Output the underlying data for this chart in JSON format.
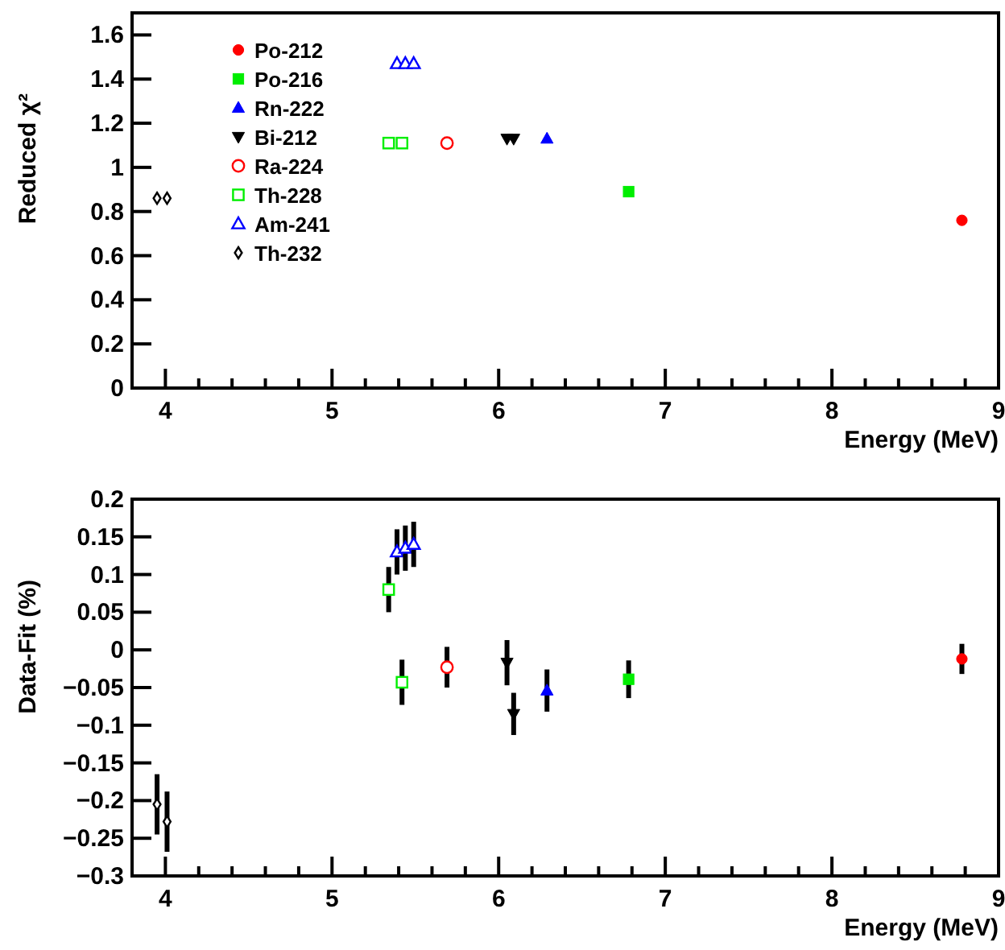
{
  "chart_data": [
    {
      "type": "scatter",
      "ylabel": "Reduced χ²",
      "xlabel": "Energy (MeV)",
      "xlim": [
        3.8,
        9
      ],
      "ylim": [
        0,
        1.7
      ],
      "legend": "top left",
      "xticks": [
        4,
        {
          "value": 4.2,
          "label": null
        },
        {
          "value": 4.4,
          "label": null
        },
        {
          "value": 4.6,
          "label": null
        },
        {
          "value": 4.8,
          "label": null
        },
        5,
        {
          "value": 5.2,
          "label": null
        },
        {
          "value": 5.4,
          "label": null
        },
        {
          "value": 5.6,
          "label": null
        },
        {
          "value": 5.8,
          "label": null
        },
        6,
        {
          "value": 6.2,
          "label": null
        },
        {
          "value": 6.4,
          "label": null
        },
        {
          "value": 6.6,
          "label": null
        },
        {
          "value": 6.8,
          "label": null
        },
        7,
        {
          "value": 7.2,
          "label": null
        },
        {
          "value": 7.4,
          "label": null
        },
        {
          "value": 7.6,
          "label": null
        },
        {
          "value": 7.8,
          "label": null
        },
        8,
        {
          "value": 8.2,
          "label": null
        },
        {
          "value": 8.4,
          "label": null
        },
        {
          "value": 8.6,
          "label": null
        },
        {
          "value": 8.8,
          "label": null
        },
        9
      ],
      "yticks": [
        0,
        0.2,
        0.4,
        0.6,
        0.8,
        1,
        1.2,
        1.4,
        1.6
      ],
      "series": [
        {
          "name": "Po-212",
          "color": "#ff0000",
          "marker": "circle",
          "x": [
            8.78
          ],
          "values": [
            0.76
          ]
        },
        {
          "name": "Po-216",
          "color": "#00ee00",
          "marker": "square",
          "x": [
            6.78
          ],
          "values": [
            0.89
          ]
        },
        {
          "name": "Rn-222",
          "color": "#0000ff",
          "marker": "triangle",
          "x": [
            6.29
          ],
          "values": [
            1.13
          ]
        },
        {
          "name": "Bi-212",
          "color": "#000000",
          "marker": "triangle-down",
          "x": [
            6.05,
            6.09
          ],
          "values": [
            1.13,
            1.13
          ]
        },
        {
          "name": "Ra-224",
          "color": "#ff0000",
          "marker": "circle-open",
          "x": [
            5.69
          ],
          "values": [
            1.11
          ]
        },
        {
          "name": "Th-228",
          "color": "#00ee00",
          "marker": "square-open",
          "x": [
            5.34,
            5.42
          ],
          "values": [
            1.11,
            1.11
          ]
        },
        {
          "name": "Am-241",
          "color": "#0000ff",
          "marker": "triangle-open",
          "x": [
            5.39,
            5.44,
            5.49
          ],
          "values": [
            1.47,
            1.47,
            1.47
          ]
        },
        {
          "name": "Th-232",
          "color": "#000000",
          "marker": "diamond-open",
          "x": [
            3.95,
            4.01
          ],
          "values": [
            0.86,
            0.86
          ]
        }
      ]
    },
    {
      "type": "scatter",
      "ylabel": "Data-Fit (%)",
      "xlabel": "Energy (MeV)",
      "xlim": [
        3.8,
        9
      ],
      "ylim": [
        -0.3,
        0.2
      ],
      "xticks": [
        4,
        {
          "value": 4.2,
          "label": null
        },
        {
          "value": 4.4,
          "label": null
        },
        {
          "value": 4.6,
          "label": null
        },
        {
          "value": 4.8,
          "label": null
        },
        5,
        {
          "value": 5.2,
          "label": null
        },
        {
          "value": 5.4,
          "label": null
        },
        {
          "value": 5.6,
          "label": null
        },
        {
          "value": 5.8,
          "label": null
        },
        6,
        {
          "value": 6.2,
          "label": null
        },
        {
          "value": 6.4,
          "label": null
        },
        {
          "value": 6.6,
          "label": null
        },
        {
          "value": 6.8,
          "label": null
        },
        7,
        {
          "value": 7.2,
          "label": null
        },
        {
          "value": 7.4,
          "label": null
        },
        {
          "value": 7.6,
          "label": null
        },
        {
          "value": 7.8,
          "label": null
        },
        8,
        {
          "value": 8.2,
          "label": null
        },
        {
          "value": 8.4,
          "label": null
        },
        {
          "value": 8.6,
          "label": null
        },
        {
          "value": 8.8,
          "label": null
        },
        9
      ],
      "yticks": [
        0.2,
        0.15,
        0.1,
        0.05,
        0,
        {
          "value": -0.05,
          "label": "−0.05"
        },
        {
          "value": -0.1,
          "label": "−0.1"
        },
        {
          "value": -0.15,
          "label": "−0.15"
        },
        {
          "value": -0.2,
          "label": "−0.2"
        },
        {
          "value": -0.25,
          "label": "−0.25"
        },
        {
          "value": -0.3,
          "label": "−0.3"
        }
      ],
      "series": [
        {
          "color": "#ff0000",
          "marker": "circle",
          "x": [
            8.78
          ],
          "values": [
            -0.012
          ],
          "errors": [
            0.02
          ]
        },
        {
          "color": "#00ee00",
          "marker": "square",
          "x": [
            6.78
          ],
          "values": [
            -0.039
          ],
          "errors": [
            0.025
          ]
        },
        {
          "color": "#0000ff",
          "marker": "triangle",
          "x": [
            6.29
          ],
          "values": [
            -0.054
          ],
          "errors": [
            0.028
          ]
        },
        {
          "color": "#000000",
          "marker": "triangle-down",
          "x": [
            6.05,
            6.09
          ],
          "values": [
            -0.017,
            -0.085
          ],
          "errors": [
            0.03,
            0.028
          ]
        },
        {
          "color": "#ff0000",
          "marker": "circle-open",
          "x": [
            5.69
          ],
          "values": [
            -0.023
          ],
          "errors": [
            0.027
          ]
        },
        {
          "color": "#00ee00",
          "marker": "square-open",
          "x": [
            5.34,
            5.42
          ],
          "values": [
            0.08,
            -0.043
          ],
          "errors": [
            0.03,
            0.03
          ]
        },
        {
          "color": "#0000ff",
          "marker": "triangle-open",
          "x": [
            5.39,
            5.44,
            5.49
          ],
          "values": [
            0.13,
            0.135,
            0.14
          ],
          "errors": [
            0.03,
            0.03,
            0.03
          ]
        },
        {
          "color": "#000000",
          "marker": "diamond-open",
          "x": [
            3.95,
            4.01
          ],
          "values": [
            -0.205,
            -0.228
          ],
          "errors": [
            0.04,
            0.04
          ]
        }
      ]
    }
  ]
}
